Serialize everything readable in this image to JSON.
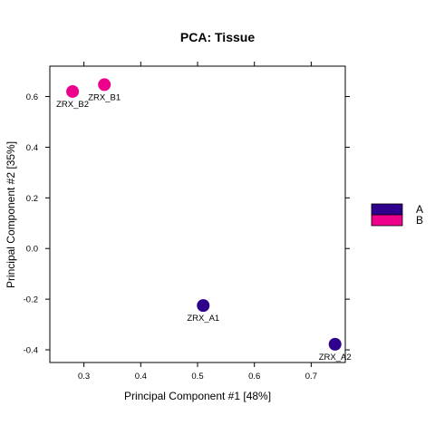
{
  "chart_data": {
    "type": "scatter",
    "title": "PCA: Tissue",
    "xlabel": "Principal Component #1 [48%]",
    "ylabel": "Principal Component #2 [35%]",
    "xlim": [
      0.24,
      0.76
    ],
    "ylim": [
      -0.45,
      0.72
    ],
    "xticks": [
      0.3,
      0.4,
      0.5,
      0.6,
      0.7
    ],
    "xtick_labels": [
      "0.3",
      "0.4",
      "0.5",
      "0.6",
      "0.7"
    ],
    "yticks": [
      -0.4,
      -0.2,
      0.0,
      0.2,
      0.4,
      0.6
    ],
    "ytick_labels": [
      "-0.4",
      "-0.2",
      "0.0",
      "0.2",
      "0.4",
      "0.6"
    ],
    "grid": false,
    "legend_position": "right",
    "series": [
      {
        "name": "A",
        "color": "#2e008b",
        "points": [
          {
            "label": "ZRX_A1",
            "x": 0.51,
            "y": -0.225
          },
          {
            "label": "ZRX_A2",
            "x": 0.742,
            "y": -0.378
          }
        ]
      },
      {
        "name": "B",
        "color": "#ec008c",
        "points": [
          {
            "label": "ZRX_B2",
            "x": 0.28,
            "y": 0.62
          },
          {
            "label": "ZRX_B1",
            "x": 0.336,
            "y": 0.647
          }
        ]
      }
    ]
  }
}
